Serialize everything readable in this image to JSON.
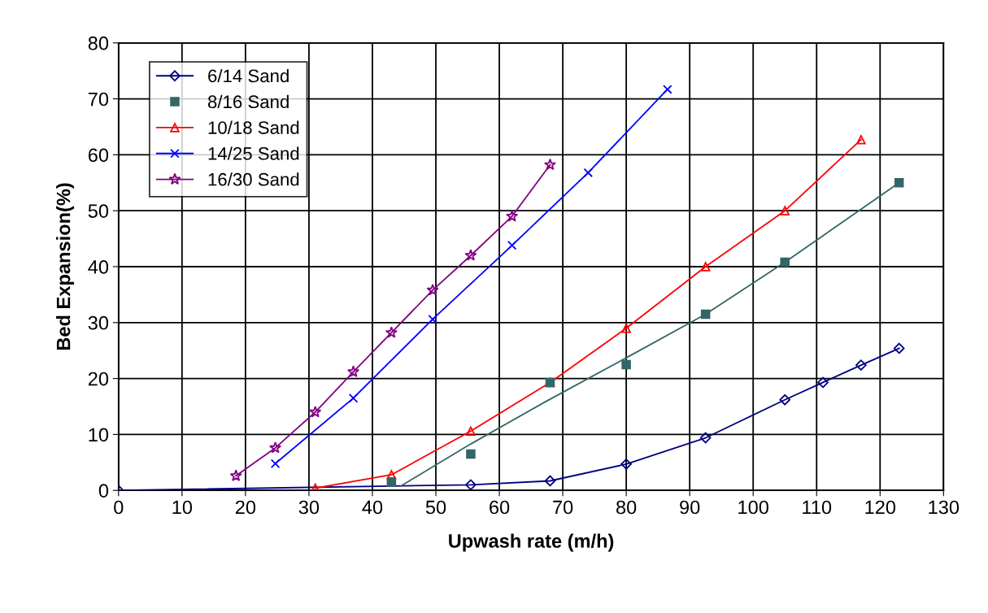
{
  "chart_data": {
    "type": "line",
    "xlabel": "Upwash rate (m/h)",
    "ylabel": "Bed Expansion(%)",
    "xlim": [
      0,
      130
    ],
    "ylim": [
      0,
      80
    ],
    "xticks": [
      0,
      10,
      20,
      30,
      40,
      50,
      60,
      70,
      80,
      90,
      100,
      110,
      120,
      130
    ],
    "yticks": [
      0,
      10,
      20,
      30,
      40,
      50,
      60,
      70,
      80
    ],
    "grid": true,
    "legend": "top left",
    "series": [
      {
        "name": "6/14 Sand",
        "color": "#000080",
        "marker": "diamond",
        "x": [
          0,
          55.5,
          68,
          80,
          92.5,
          105,
          111,
          117,
          123
        ],
        "values": [
          0,
          1,
          1.7,
          4.7,
          9.4,
          16.2,
          19.3,
          22.4,
          25.4
        ]
      },
      {
        "name": "8/16 Sand",
        "type": "scatter",
        "color": "#336666",
        "marker": "square",
        "x": [
          43,
          55.5,
          68,
          80,
          92.5,
          105,
          123
        ],
        "values": [
          1.5,
          6.5,
          19.3,
          22.5,
          31.5,
          40.8,
          55
        ]
      },
      {
        "name": "10/18 Sand",
        "color": "#ff0000",
        "marker": "triangle",
        "x": [
          31,
          43,
          55.5,
          68,
          80,
          92.5,
          105,
          117
        ],
        "values": [
          0.4,
          2.8,
          10.6,
          19.3,
          29,
          40,
          50,
          62.7
        ]
      },
      {
        "name": "14/25 Sand",
        "color": "#0000ff",
        "marker": "cross",
        "x": [
          24.7,
          37,
          49.5,
          62,
          74,
          86.5
        ],
        "values": [
          4.8,
          16.5,
          30.6,
          43.8,
          56.8,
          71.7
        ]
      },
      {
        "name": "16/30 Sand",
        "color": "#800080",
        "marker": "star",
        "x": [
          18.5,
          24.7,
          31,
          37,
          43,
          49.5,
          55.5,
          62,
          68
        ],
        "values": [
          2.6,
          7.6,
          14,
          21.2,
          28.2,
          35.8,
          42,
          49,
          58.2
        ]
      },
      {
        "type": "line",
        "color": "#336666",
        "marker": "none",
        "x": [
          44.5,
          55.5,
          67.5,
          80,
          92.5,
          105,
          123
        ],
        "values": [
          0.8,
          8.3,
          16,
          23.7,
          31.5,
          40.8,
          55
        ]
      }
    ]
  }
}
